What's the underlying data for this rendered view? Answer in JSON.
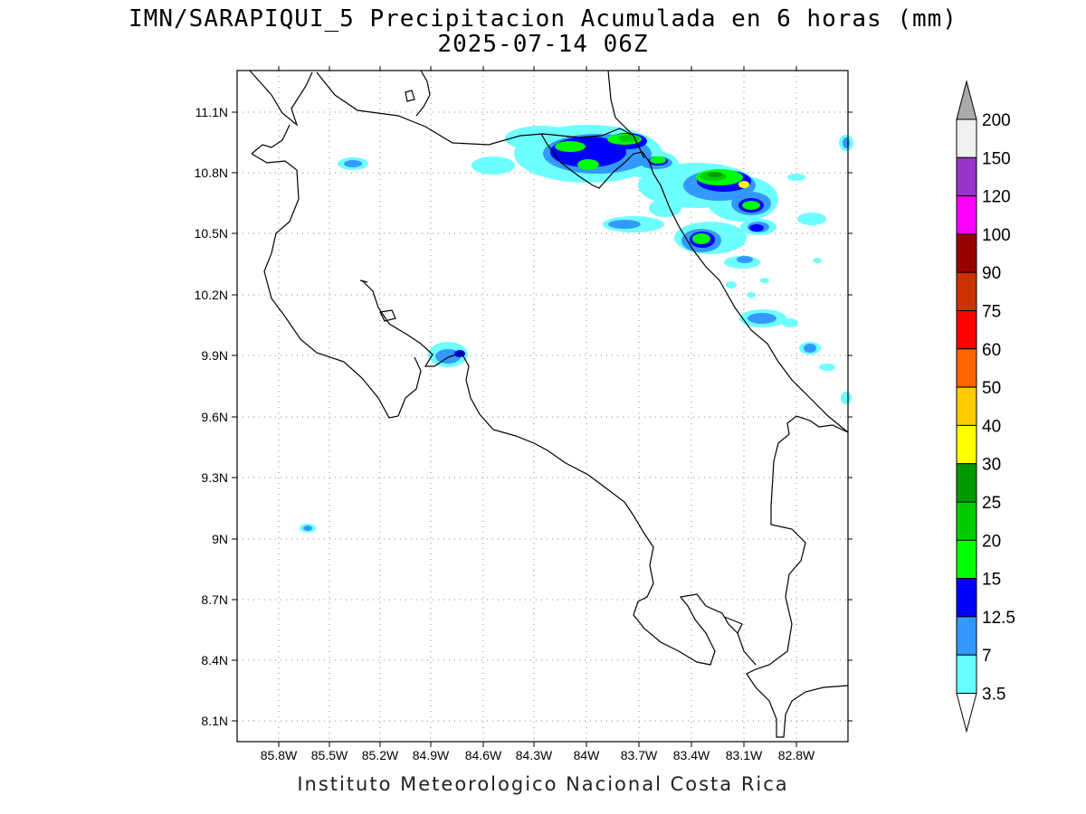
{
  "title_line1": "IMN/SARAPIQUI_5 Precipitacion Acumulada en 6 horas (mm)",
  "title_line2": "2025-07-14 06Z",
  "footer": "Instituto Meteorologico Nacional Costa Rica",
  "map": {
    "lon_ticks": [
      "85.8W",
      "85.5W",
      "85.2W",
      "84.9W",
      "84.6W",
      "84.3W",
      "84W",
      "83.7W",
      "83.4W",
      "83.1W",
      "82.8W"
    ],
    "lat_ticks": [
      "11.1N",
      "10.8N",
      "10.5N",
      "10.2N",
      "9.9N",
      "9.6N",
      "9.3N",
      "9N",
      "8.7N",
      "8.4N",
      "8.1N"
    ]
  },
  "colorbar": {
    "labels": [
      "200",
      "150",
      "120",
      "100",
      "90",
      "75",
      "60",
      "50",
      "40",
      "30",
      "25",
      "20",
      "15",
      "12.5",
      "7",
      "3.5"
    ],
    "colors": [
      "#f0f0f0",
      "#9933cc",
      "#ff00ff",
      "#990000",
      "#cc3300",
      "#ff0000",
      "#ff6600",
      "#ffcc00",
      "#ffff00",
      "#009900",
      "#00cc00",
      "#00ff00",
      "#0000ff",
      "#3399ff",
      "#66ffff"
    ],
    "top_arrow_color": "#aaaaaa",
    "bottom_arrow_color": "#ffffff"
  }
}
